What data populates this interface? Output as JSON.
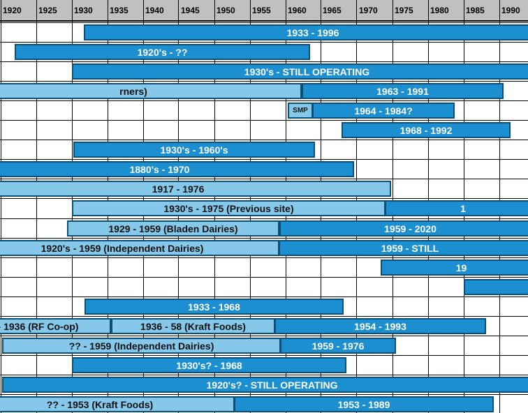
{
  "chart_data": {
    "type": "gantt-timeline",
    "x_ticks": [
      1920,
      1925,
      1930,
      1935,
      1940,
      1945,
      1950,
      1955,
      1960,
      1965,
      1970,
      1975,
      1980,
      1985,
      1990
    ],
    "colors": {
      "header": "#c0c0c0",
      "dark_bar": "#1c8fd0",
      "light_bar": "#85c8ea",
      "border": "#0b4f78",
      "grid": "#000000"
    },
    "rows": [
      {
        "bars": [
          {
            "label": "1933 - 1996",
            "start": 1931.7,
            "end": 1996,
            "style": "dark"
          }
        ]
      },
      {
        "bars": [
          {
            "label": "1920's - ??",
            "start": 1922,
            "end": 1963.5,
            "style": "dark"
          }
        ]
      },
      {
        "bars": [
          {
            "label": "1930's -  STILL OPERATING",
            "start": 1930,
            "end": 1996,
            "style": "dark"
          }
        ]
      },
      {
        "bars": [
          {
            "label": "rners)",
            "start": 1915,
            "end": 1962.3,
            "style": "light"
          },
          {
            "label": "1963 - 1991",
            "start": 1962.3,
            "end": 1990.6,
            "style": "dark"
          }
        ]
      },
      {
        "bars": [
          {
            "label": "SMP",
            "start": 1960.3,
            "end": 1963.8,
            "style": "light",
            "small": true
          },
          {
            "label": "1964 - 1984?",
            "start": 1963.8,
            "end": 1983.8,
            "style": "dark"
          }
        ]
      },
      {
        "bars": [
          {
            "label": "1968 - 1992",
            "start": 1967.9,
            "end": 1991.6,
            "style": "dark"
          }
        ]
      },
      {
        "bars": [
          {
            "label": "1930's - 1960's",
            "start": 1930.2,
            "end": 1964.1,
            "style": "dark"
          }
        ]
      },
      {
        "bars": [
          {
            "label": "1880's - 1970",
            "start": 1915,
            "end": 1969.6,
            "style": "dark"
          }
        ]
      },
      {
        "bars": [
          {
            "label": "1917 - 1976",
            "start": 1915,
            "end": 1974.8,
            "style": "light"
          }
        ]
      },
      {
        "bars": [
          {
            "label": "1930's - 1975 (Previous site)",
            "start": 1930,
            "end": 1974,
            "style": "light"
          },
          {
            "label": "1",
            "start": 1974,
            "end": 1996,
            "style": "dark"
          }
        ]
      },
      {
        "bars": [
          {
            "label": "1929 - 1959 (Bladen Dairies)",
            "start": 1929.4,
            "end": 1959.2,
            "style": "light"
          },
          {
            "label": "1959 - 2020",
            "start": 1959.2,
            "end": 1996,
            "style": "dark"
          }
        ]
      },
      {
        "bars": [
          {
            "label": "1920's - 1959 (Independent Dairies)",
            "start": 1915,
            "end": 1959.1,
            "style": "light"
          },
          {
            "label": "1959 - STILL",
            "start": 1959.1,
            "end": 1996,
            "style": "dark"
          }
        ]
      },
      {
        "bars": [
          {
            "label": "19",
            "start": 1973.4,
            "end": 1996,
            "style": "dark"
          }
        ]
      },
      {
        "bars": [
          {
            "label": "",
            "start": 1985,
            "end": 1996,
            "style": "dark"
          }
        ]
      },
      {
        "bars": [
          {
            "label": "1933 - 1968",
            "start": 1931.8,
            "end": 1968.2,
            "style": "dark"
          }
        ]
      },
      {
        "bars": [
          {
            "label": "- 1936 (RF Co-op)",
            "start": 1915,
            "end": 1935.5,
            "style": "light"
          },
          {
            "label": "1936 - 58 (Kraft Foods)",
            "start": 1935.5,
            "end": 1958.5,
            "style": "light"
          },
          {
            "label": "1954 - 1993",
            "start": 1958.5,
            "end": 1988.2,
            "style": "dark"
          }
        ]
      },
      {
        "bars": [
          {
            "label": "?? - 1959 (Independent Dairies)",
            "start": 1920.2,
            "end": 1959.3,
            "style": "light"
          },
          {
            "label": "1959 - 1976",
            "start": 1959.3,
            "end": 1975.6,
            "style": "dark"
          }
        ]
      },
      {
        "bars": [
          {
            "label": "1930's? - 1968",
            "start": 1930,
            "end": 1968.5,
            "style": "dark"
          }
        ]
      },
      {
        "bars": [
          {
            "label": "1920's? - STILL OPERATING",
            "start": 1920.2,
            "end": 1996,
            "style": "dark"
          }
        ]
      },
      {
        "bars": [
          {
            "label": "?? - 1953 (Kraft Foods)",
            "start": 1915,
            "end": 1952.8,
            "style": "light"
          },
          {
            "label": "1953 - 1989",
            "start": 1952.8,
            "end": 1989.3,
            "style": "dark"
          }
        ]
      }
    ]
  }
}
